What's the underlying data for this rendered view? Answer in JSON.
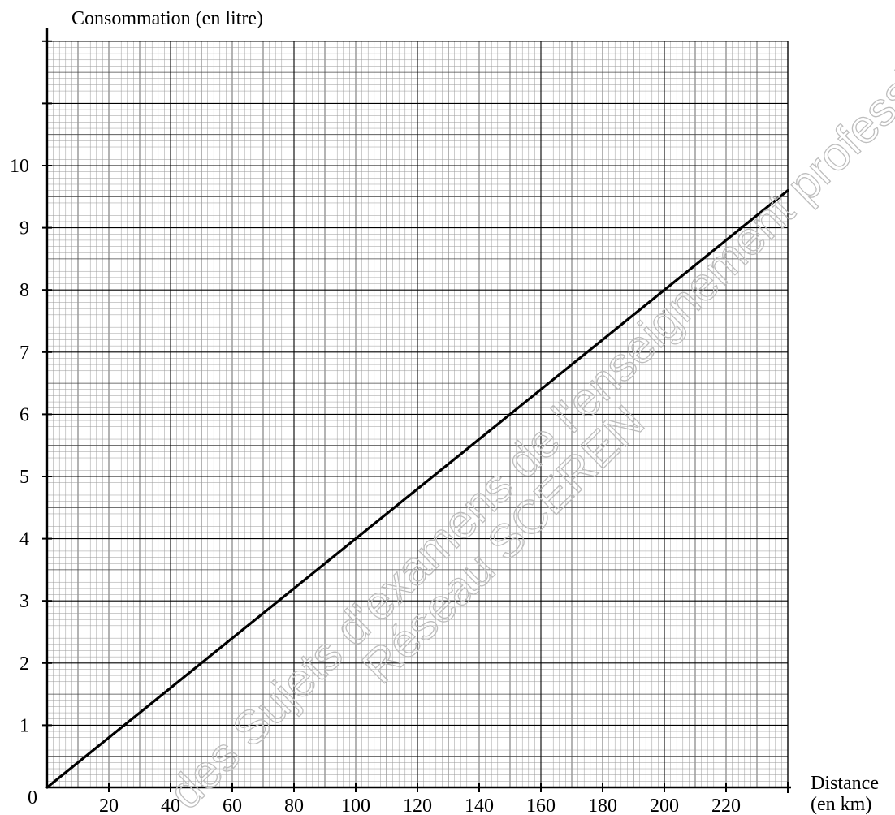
{
  "chart_data": {
    "type": "line",
    "title": "",
    "xlabel": "Distance (en km)",
    "ylabel": "Consommation (en litre)",
    "xlabel_lines": [
      "Distance",
      "(en km)"
    ],
    "xlim": [
      0,
      240
    ],
    "ylim": [
      0,
      12
    ],
    "x_tick_labels": [
      "0",
      "20",
      "40",
      "60",
      "80",
      "100",
      "120",
      "140",
      "160",
      "180",
      "200",
      "220"
    ],
    "y_tick_labels": [
      "1",
      "2",
      "3",
      "4",
      "5",
      "6",
      "7",
      "8",
      "9",
      "10"
    ],
    "grid": true,
    "series": [
      {
        "x": [
          0,
          240
        ],
        "y": [
          0,
          9.6
        ],
        "color": "#000000"
      }
    ]
  },
  "watermark": {
    "line1": "des Sujets d'examens de l'enseignement professionnel",
    "line2": "Réseau SCEREN"
  }
}
